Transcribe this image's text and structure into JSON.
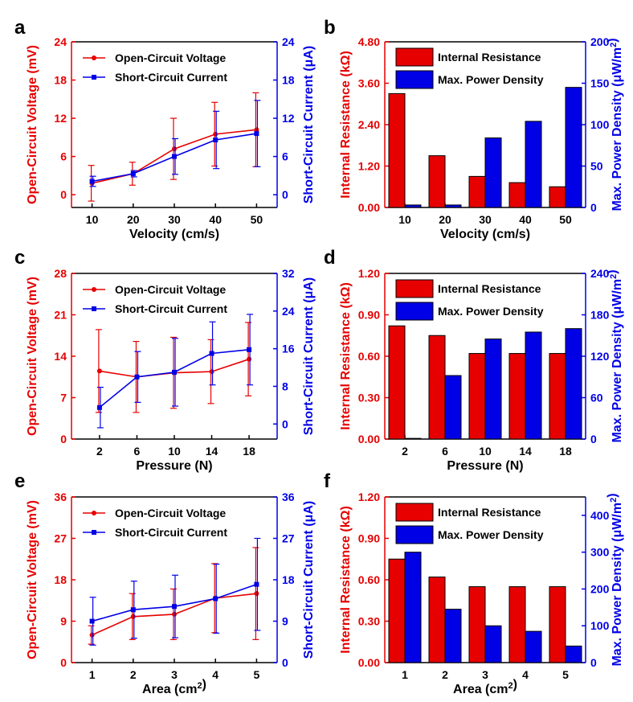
{
  "colors": {
    "red": "#e60000",
    "blue": "#0000e6",
    "black": "#000000"
  },
  "chart_data": [
    {
      "panel": "a",
      "type": "line",
      "x": [
        10,
        20,
        30,
        40,
        50
      ],
      "xlabel": "Velocity (cm/s)",
      "ylabel": "Open-Circuit Voltage (mV)",
      "y2label": "Short-Circuit Current (μA)",
      "xlim": [
        5,
        55
      ],
      "ylim": [
        -2,
        24
      ],
      "y2lim": [
        -2,
        24
      ],
      "xticks": [
        "10",
        "20",
        "30",
        "40",
        "50"
      ],
      "yticks": [
        "0",
        "6",
        "12",
        "18",
        "24"
      ],
      "y2ticks": [
        "0",
        "6",
        "12",
        "18",
        "24"
      ],
      "series": [
        {
          "name": "Open-Circuit Voltage",
          "axis": "left",
          "values": [
            1.8,
            3.3,
            7.2,
            9.5,
            10.2
          ],
          "err": [
            2.8,
            1.8,
            4.8,
            5.0,
            5.8
          ]
        },
        {
          "name": "Short-Circuit Current",
          "axis": "right",
          "values": [
            2.1,
            3.3,
            6.0,
            8.6,
            9.6
          ],
          "err": [
            0.8,
            0.5,
            2.8,
            4.5,
            5.2
          ]
        }
      ]
    },
    {
      "panel": "b",
      "type": "bar",
      "categories": [
        "10",
        "20",
        "30",
        "40",
        "50"
      ],
      "xlabel": "Velocity (cm/s)",
      "ylabel": "Internal Resistance (kΩ)",
      "y2label": "Max. Power Density (μW/m²)",
      "ylim": [
        0,
        4.8
      ],
      "y2lim": [
        0,
        200
      ],
      "yticks": [
        "0.00",
        "1.20",
        "2.40",
        "3.60",
        "4.80"
      ],
      "y2ticks": [
        "0",
        "50",
        "100",
        "150",
        "200"
      ],
      "series": [
        {
          "name": "Internal Resistance",
          "axis": "left",
          "values": [
            3.3,
            1.5,
            0.9,
            0.72,
            0.6
          ]
        },
        {
          "name": "Max. Power Density",
          "axis": "right",
          "values": [
            3,
            3,
            84,
            104,
            145
          ]
        }
      ]
    },
    {
      "panel": "c",
      "type": "line",
      "x": [
        2,
        6,
        10,
        14,
        18
      ],
      "xlabel": "Pressure (N)",
      "ylabel": "Open-Circuit Voltage (mV)",
      "y2label": "Short-Circuit Current (μA)",
      "xlim": [
        -1,
        21
      ],
      "ylim": [
        0,
        28
      ],
      "y2lim": [
        -3.2,
        32
      ],
      "xticks": [
        "2",
        "6",
        "10",
        "14",
        "18"
      ],
      "yticks": [
        "0",
        "7",
        "14",
        "21",
        "28"
      ],
      "y2ticks": [
        "0",
        "8",
        "16",
        "24",
        "32"
      ],
      "series": [
        {
          "name": "Open-Circuit Voltage",
          "axis": "left",
          "values": [
            11.5,
            10.5,
            11.2,
            11.4,
            13.5
          ],
          "err": [
            7.0,
            6.0,
            6.0,
            5.4,
            6.2
          ]
        },
        {
          "name": "Short-Circuit Current",
          "axis": "right",
          "values": [
            3.5,
            10.0,
            11.0,
            15.0,
            15.8
          ],
          "err": [
            4.3,
            5.4,
            7.2,
            6.7,
            7.5
          ]
        }
      ]
    },
    {
      "panel": "d",
      "type": "bar",
      "categories": [
        "2",
        "6",
        "10",
        "14",
        "18"
      ],
      "xlabel": "Pressure (N)",
      "ylabel": "Internal Resistance (kΩ)",
      "y2label": "Max. Power Density (μW/m²)",
      "ylim": [
        0,
        1.2
      ],
      "y2lim": [
        0,
        240
      ],
      "yticks": [
        "0.00",
        "0.30",
        "0.60",
        "0.90",
        "1.20"
      ],
      "y2ticks": [
        "0",
        "60",
        "120",
        "180",
        "240"
      ],
      "series": [
        {
          "name": "Internal Resistance",
          "axis": "left",
          "values": [
            0.82,
            0.75,
            0.62,
            0.62,
            0.62
          ]
        },
        {
          "name": "Max. Power Density",
          "axis": "right",
          "values": [
            1,
            92,
            145,
            155,
            160
          ]
        }
      ]
    },
    {
      "panel": "e",
      "type": "line",
      "x": [
        1,
        2,
        3,
        4,
        5
      ],
      "xlabel": "Area (cm²)",
      "ylabel": "Open-Circuit Voltage (mV)",
      "y2label": "Short-Circuit Current (μA)",
      "xlim": [
        0.5,
        5.5
      ],
      "ylim": [
        0,
        36
      ],
      "y2lim": [
        0,
        36
      ],
      "xticks": [
        "1",
        "2",
        "3",
        "4",
        "5"
      ],
      "yticks": [
        "0",
        "9",
        "18",
        "27",
        "36"
      ],
      "y2ticks": [
        "0",
        "9",
        "18",
        "27",
        "36"
      ],
      "series": [
        {
          "name": "Open-Circuit Voltage",
          "axis": "left",
          "values": [
            6.0,
            10.0,
            10.5,
            14.0,
            15.0
          ],
          "err": [
            2.0,
            5.0,
            5.5,
            7.5,
            10.0
          ]
        },
        {
          "name": "Short-Circuit Current",
          "axis": "right",
          "values": [
            9.0,
            11.5,
            12.2,
            13.9,
            17.0
          ],
          "err": [
            5.2,
            6.2,
            6.8,
            7.5,
            10.0
          ]
        }
      ]
    },
    {
      "panel": "f",
      "type": "bar",
      "categories": [
        "1",
        "2",
        "3",
        "4",
        "5"
      ],
      "xlabel": "Area (cm²)",
      "ylabel": "Internal Resistance (kΩ)",
      "y2label": "Max. Power Density (μW/m²)",
      "ylim": [
        0,
        1.2
      ],
      "y2lim": [
        0,
        450
      ],
      "yticks": [
        "0.00",
        "0.30",
        "0.60",
        "0.90",
        "1.20"
      ],
      "y2ticks": [
        "0",
        "100",
        "200",
        "300",
        "400"
      ],
      "series": [
        {
          "name": "Internal Resistance",
          "axis": "left",
          "values": [
            0.75,
            0.62,
            0.55,
            0.55,
            0.55
          ]
        },
        {
          "name": "Max. Power Density",
          "axis": "right",
          "values": [
            300,
            145,
            100,
            85,
            45
          ]
        }
      ]
    }
  ]
}
